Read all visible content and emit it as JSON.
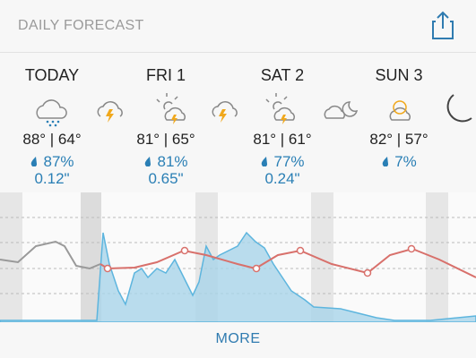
{
  "header": {
    "title": "DAILY FORECAST"
  },
  "days": [
    {
      "name": "TODAY",
      "temps": "88° | 64°",
      "precip": "87%",
      "amount": "0.12\""
    },
    {
      "name": "FRI 1",
      "temps": "81° | 65°",
      "precip": "81%",
      "amount": "0.65\""
    },
    {
      "name": "SAT 2",
      "temps": "81° | 61°",
      "precip": "77%",
      "amount": "0.24\""
    },
    {
      "name": "SUN 3",
      "temps": "82° | 57°",
      "precip": "7%"
    }
  ],
  "footer": {
    "more": "MORE"
  }
}
